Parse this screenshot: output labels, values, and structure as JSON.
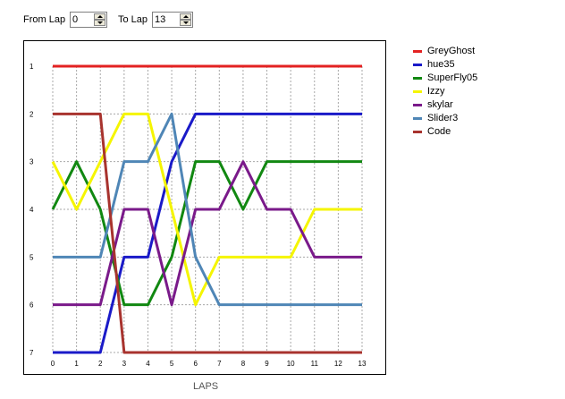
{
  "controls": {
    "from_label": "From Lap",
    "from_value": "0",
    "to_label": "To Lap",
    "to_value": "13"
  },
  "chart_data": {
    "type": "line",
    "xlabel": "LAPS",
    "ylabel": "",
    "x": [
      0,
      1,
      2,
      3,
      4,
      5,
      6,
      7,
      8,
      9,
      10,
      11,
      12,
      13
    ],
    "xlim": [
      0,
      13
    ],
    "ylim": [
      1,
      7
    ],
    "y_inverted": true,
    "y_ticks": [
      1,
      2,
      3,
      4,
      5,
      6,
      7
    ],
    "grid": true,
    "legend": "right",
    "series": [
      {
        "name": "GreyGhost",
        "color": "#e32222",
        "values": [
          1,
          1,
          1,
          1,
          1,
          1,
          1,
          1,
          1,
          1,
          1,
          1,
          1,
          1
        ]
      },
      {
        "name": "hue35",
        "color": "#1a1ac8",
        "values": [
          7,
          7,
          7,
          5,
          5,
          3,
          2,
          2,
          2,
          2,
          2,
          2,
          2,
          2
        ]
      },
      {
        "name": "SuperFly05",
        "color": "#118811",
        "values": [
          4,
          3,
          4,
          6,
          6,
          5,
          3,
          3,
          4,
          3,
          3,
          3,
          3,
          3
        ]
      },
      {
        "name": "Izzy",
        "color": "#f5f500",
        "values": [
          3,
          4,
          3,
          2,
          2,
          4,
          6,
          5,
          5,
          5,
          5,
          4,
          4,
          4
        ]
      },
      {
        "name": "skylar",
        "color": "#7a1a8a",
        "values": [
          6,
          6,
          6,
          4,
          4,
          6,
          4,
          4,
          3,
          4,
          4,
          5,
          5,
          5
        ]
      },
      {
        "name": "Slider3",
        "color": "#4f86b6",
        "values": [
          5,
          5,
          5,
          3,
          3,
          2,
          5,
          6,
          6,
          6,
          6,
          6,
          6,
          6
        ]
      },
      {
        "name": "Code",
        "color": "#a8332e",
        "values": [
          2,
          2,
          2,
          7,
          7,
          7,
          7,
          7,
          7,
          7,
          7,
          7,
          7,
          7
        ]
      }
    ]
  }
}
